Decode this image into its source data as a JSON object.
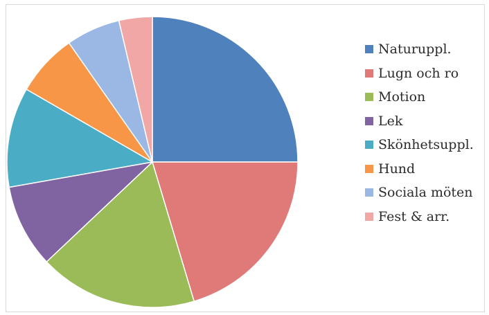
{
  "chart_data": {
    "type": "pie",
    "start": "12 o'clock",
    "direction": "clockwise",
    "slices": [
      {
        "label": "Naturuppl.",
        "value": 27,
        "color": "#4f81bd"
      },
      {
        "label": "Lugn och ro",
        "value": 22,
        "color": "#e07a78"
      },
      {
        "label": "Motion",
        "value": 19,
        "color": "#9bbb59"
      },
      {
        "label": "Lek",
        "value": 10,
        "color": "#8064a2"
      },
      {
        "label": "Skönhetsuppl.",
        "value": 12,
        "color": "#4bacc6"
      },
      {
        "label": "Hund",
        "value": 7.5,
        "color": "#f79646"
      },
      {
        "label": "Sociala möten",
        "value": 6.5,
        "color": "#9bb7e3"
      },
      {
        "label": "Fest & arr.",
        "value": 4,
        "color": "#f2a7a7"
      }
    ]
  }
}
